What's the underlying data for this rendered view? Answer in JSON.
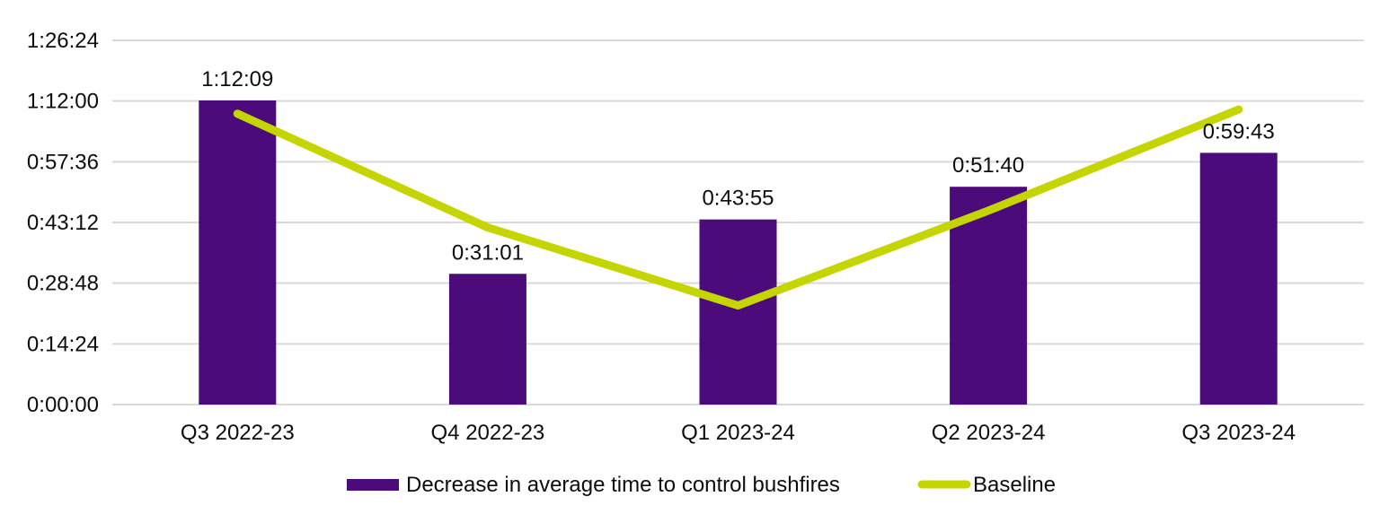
{
  "chart_data": {
    "type": "bar",
    "subtype": "bar-with-line-overlay",
    "title": "",
    "xlabel": "",
    "ylabel": "",
    "categories": [
      "Q3 2022-23",
      "Q4 2022-23",
      "Q1 2023-24",
      "Q2 2023-24",
      "Q3 2023-24"
    ],
    "series": [
      {
        "name": "Decrease in average time to control bushfires",
        "type": "bar",
        "color": "#4c0b7a",
        "labels": [
          "1:12:09",
          "0:31:01",
          "0:43:55",
          "0:51:40",
          "0:59:43"
        ],
        "values_seconds": [
          4329,
          1861,
          2635,
          3100,
          3583
        ]
      },
      {
        "name": "Baseline",
        "type": "line",
        "color": "#c4d502",
        "values_seconds": [
          4140,
          2520,
          1410,
          2760,
          4200
        ]
      }
    ],
    "y_axis": {
      "min_seconds": 0,
      "max_seconds": 5184,
      "tick_step_seconds": 864,
      "ticks": [
        {
          "label": "1:26:24",
          "seconds": 5184
        },
        {
          "label": "1:12:00",
          "seconds": 4320
        },
        {
          "label": "0:57:36",
          "seconds": 3456
        },
        {
          "label": "0:43:12",
          "seconds": 2592
        },
        {
          "label": "0:28:48",
          "seconds": 1728
        },
        {
          "label": "0:14:24",
          "seconds": 864
        },
        {
          "label": "0:00:00",
          "seconds": 0
        }
      ]
    },
    "grid": true,
    "legend_position": "bottom"
  },
  "colors": {
    "bar": "#4c0b7a",
    "line": "#c4d502",
    "gridline": "#d9d9d9",
    "text": "#0d0d0d",
    "background": "#ffffff"
  }
}
